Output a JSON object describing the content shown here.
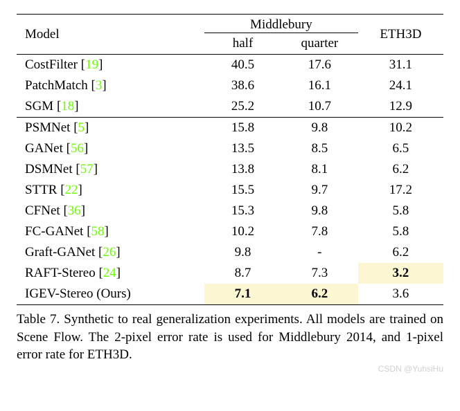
{
  "colors": {
    "ref": "#6aff00",
    "highlight": "#fcf6d2",
    "watermark": "#d0d0d0",
    "text": "#000000",
    "background": "#ffffff",
    "rule": "#000000"
  },
  "typography": {
    "font_family": "Times New Roman",
    "body_fontsize": 19,
    "caption_fontsize": 19,
    "watermark_fontsize": 12
  },
  "header": {
    "model": "Model",
    "middlebury": "Middlebury",
    "half": "half",
    "quarter": "quarter",
    "eth3d": "ETH3D"
  },
  "groups": [
    {
      "rows": [
        {
          "name": "CostFilter",
          "ref": "19",
          "half": "40.5",
          "quarter": "17.6",
          "eth3d": "31.1"
        },
        {
          "name": "PatchMatch",
          "ref": "3",
          "half": "38.6",
          "quarter": "16.1",
          "eth3d": "24.1"
        },
        {
          "name": "SGM",
          "ref": "18",
          "half": "25.2",
          "quarter": "10.7",
          "eth3d": "12.9"
        }
      ]
    },
    {
      "rows": [
        {
          "name": "PSMNet",
          "ref": "5",
          "half": "15.8",
          "quarter": "9.8",
          "eth3d": "10.2"
        },
        {
          "name": "GANet",
          "ref": "56",
          "half": "13.5",
          "quarter": "8.5",
          "eth3d": "6.5"
        },
        {
          "name": "DSMNet",
          "ref": "57",
          "half": "13.8",
          "quarter": "8.1",
          "eth3d": "6.2"
        },
        {
          "name": "STTR",
          "ref": "22",
          "half": "15.5",
          "quarter": "9.7",
          "eth3d": "17.2"
        },
        {
          "name": "CFNet",
          "ref": "36",
          "half": "15.3",
          "quarter": "9.8",
          "eth3d": "5.8"
        },
        {
          "name": "FC-GANet",
          "ref": "58",
          "half": "10.2",
          "quarter": "7.8",
          "eth3d": "5.8"
        },
        {
          "name": "Graft-GANet",
          "ref": "26",
          "half": "9.8",
          "quarter": "-",
          "eth3d": "6.2"
        },
        {
          "name": "RAFT-Stereo",
          "ref": "24",
          "half": "8.7",
          "quarter": "7.3",
          "eth3d": "3.2",
          "bold_eth3d": true,
          "hl_eth3d": true
        },
        {
          "name_full": "IGEV-Stereo (Ours)",
          "half": "7.1",
          "quarter": "6.2",
          "eth3d": "3.6",
          "bold_half": true,
          "bold_quarter": true,
          "hl_half": true,
          "hl_quarter": true
        }
      ]
    }
  ],
  "caption": {
    "label": "Table 7.",
    "text": "Synthetic to real generalization experiments.  All models are trained on Scene Flow.  The 2-pixel error rate is used for Middlebury 2014, and 1-pixel error rate for ETH3D."
  },
  "watermark": "CSDN @YuhsiHu"
}
